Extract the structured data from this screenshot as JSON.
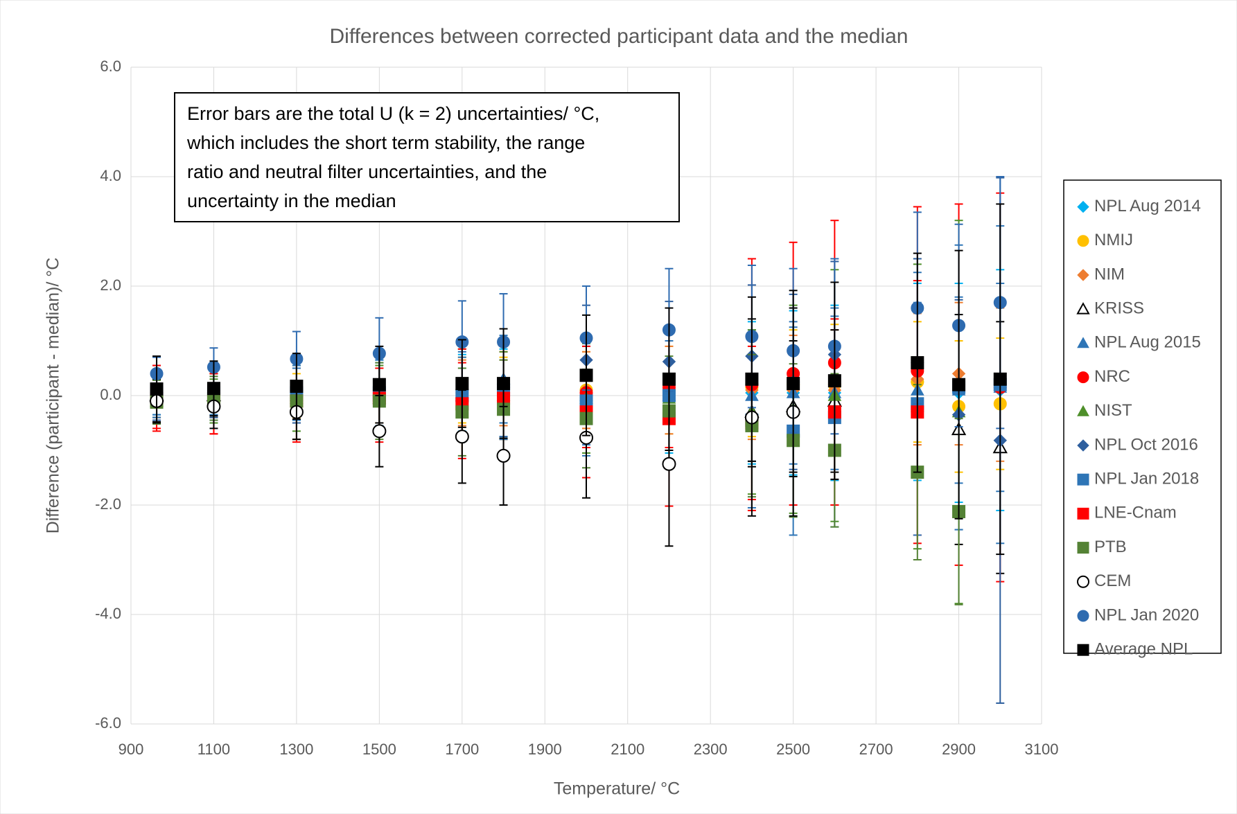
{
  "chart_data": {
    "type": "scatter",
    "title": "Differences between corrected participant data and the median",
    "x_label": "Temperature/ °C",
    "y_label": "Difference (participant - median)/ °C",
    "annotation": [
      "Error bars are the total U (k = 2) uncertainties/ °C,",
      "which includes the short term stability, the range",
      "ratio and neutral filter uncertainties, and the",
      "uncertainty in the median"
    ],
    "grid": true,
    "legend": "right",
    "xlim": [
      900,
      3100
    ],
    "xticks": [
      900,
      1100,
      1300,
      1500,
      1700,
      1900,
      2100,
      2300,
      2500,
      2700,
      2900,
      3100
    ],
    "ylim": [
      -6,
      6
    ],
    "yticks": [
      {
        "value": -6,
        "label": "-6.0"
      },
      {
        "value": -4,
        "label": "-4.0"
      },
      {
        "value": -2,
        "label": "-2.0"
      },
      {
        "value": 0,
        "label": "0.0"
      },
      {
        "value": 2,
        "label": "2.0"
      },
      {
        "value": 4,
        "label": "4.0"
      },
      {
        "value": 6,
        "label": "6.0"
      }
    ],
    "x": [
      962,
      1100,
      1300,
      1500,
      1700,
      1800,
      2000,
      2200,
      2400,
      2500,
      2600,
      2800,
      2900,
      3000
    ],
    "series": [
      {
        "name": "NPL Aug 2014",
        "color": "#00b0f0",
        "marker": "diamond",
        "filled": true,
        "values": [
          0.05,
          0.05,
          0.05,
          0.05,
          0.05,
          0.05,
          0.1,
          0.05,
          0.05,
          0.05,
          0.05,
          0.25,
          0.05,
          0.1
        ],
        "errors": [
          0.4,
          0.4,
          0.5,
          0.6,
          0.7,
          0.8,
          0.9,
          1.1,
          1.3,
          1.5,
          1.6,
          1.8,
          2.0,
          2.2
        ]
      },
      {
        "name": "NMIJ",
        "color": "#ffc000",
        "marker": "circle",
        "filled": true,
        "values": [
          0,
          0,
          0,
          0,
          0.1,
          0.1,
          0.1,
          0.1,
          0.15,
          0.2,
          0.2,
          0.25,
          -0.2,
          -0.15
        ],
        "errors": [
          0.4,
          0.4,
          0.4,
          0.5,
          0.6,
          0.6,
          0.7,
          0.8,
          0.9,
          1.0,
          1.1,
          1.1,
          1.2,
          1.2
        ]
      },
      {
        "name": "NIM",
        "color": "#ed7d31",
        "marker": "diamond",
        "filled": true,
        "values": [
          0,
          0,
          0,
          0,
          0.05,
          0.05,
          0.1,
          0.1,
          0.1,
          0.1,
          0.1,
          0.3,
          0.4,
          0.2
        ],
        "errors": [
          0.4,
          0.4,
          0.5,
          0.5,
          0.6,
          0.6,
          0.7,
          0.8,
          0.9,
          1.0,
          1.1,
          1.2,
          1.3,
          1.4
        ]
      },
      {
        "name": "KRISS",
        "color": "#000000",
        "marker": "triangle",
        "filled": false,
        "values": [
          0,
          0,
          null,
          null,
          null,
          null,
          null,
          null,
          -0.3,
          -0.2,
          -0.1,
          null,
          -0.62,
          -0.95
        ],
        "errors": [
          0.4,
          0.4,
          null,
          null,
          null,
          null,
          null,
          null,
          1.0,
          1.2,
          1.3,
          null,
          2.1,
          2.3
        ]
      },
      {
        "name": "NPL Aug 2015",
        "color": "#2e75b6",
        "marker": "triangle",
        "filled": true,
        "values": [
          0,
          0,
          0,
          0,
          0,
          0.3,
          0,
          0,
          0,
          0.05,
          0.05,
          0.1,
          0.1,
          0.15
        ],
        "errors": [
          0.4,
          0.45,
          0.5,
          0.6,
          0.7,
          0.8,
          0.9,
          1.0,
          1.2,
          1.3,
          1.4,
          1.6,
          1.7,
          1.9
        ]
      },
      {
        "name": "NRC",
        "color": "#ff0000",
        "marker": "circle",
        "filled": true,
        "values": [
          -0.1,
          -0.15,
          -0.1,
          -0.1,
          -0.1,
          0,
          0.05,
          0.15,
          0.2,
          0.4,
          0.6,
          0.45,
          0.2,
          0.15
        ],
        "errors": [
          0.5,
          0.55,
          0.7,
          0.6,
          0.7,
          0.8,
          1.0,
          1.1,
          2.3,
          2.4,
          2.6,
          3.0,
          3.3,
          3.55
        ]
      },
      {
        "name": "NIST",
        "color": "#4e8f2a",
        "marker": "triangle",
        "filled": true,
        "values": [
          -0.1,
          -0.1,
          -0.05,
          -0.05,
          0.05,
          0,
          -0.05,
          -0.05,
          -0.3,
          -0.25,
          0,
          -0.2,
          -0.3,
          null
        ],
        "errors": [
          0.4,
          0.4,
          0.6,
          0.6,
          0.8,
          0.8,
          1.0,
          1.2,
          1.5,
          1.9,
          2.3,
          2.6,
          3.5,
          null
        ]
      },
      {
        "name": "NPL Oct 2016",
        "color": "#2e5f9e",
        "marker": "diamond",
        "filled": true,
        "values": [
          0.05,
          0.1,
          0.1,
          0.1,
          0.1,
          0.15,
          0.65,
          0.62,
          0.72,
          0.25,
          0.75,
          0.6,
          -0.35,
          -0.82
        ],
        "errors": [
          0.5,
          0.5,
          0.6,
          0.7,
          0.8,
          0.9,
          1.0,
          1.1,
          1.3,
          1.6,
          1.7,
          1.9,
          2.1,
          4.8
        ]
      },
      {
        "name": "NPL Jan 2018",
        "color": "#2e75b6",
        "marker": "square",
        "filled": true,
        "values": [
          0.05,
          0.05,
          0.05,
          0.05,
          0,
          0.1,
          -0.1,
          0,
          -0.45,
          -0.65,
          -0.4,
          -0.15,
          0.15,
          0.2
        ],
        "errors": [
          0.4,
          0.4,
          0.5,
          0.6,
          0.8,
          0.9,
          1.0,
          1.2,
          1.6,
          1.9,
          2.0,
          2.4,
          2.6,
          2.9
        ]
      },
      {
        "name": "LNE-Cnam",
        "color": "#ff0000",
        "marker": "square",
        "filled": true,
        "values": [
          -0.05,
          -0.1,
          -0.1,
          -0.05,
          -0.15,
          -0.05,
          -0.3,
          -0.42,
          -0.5,
          null,
          -0.3,
          -0.3,
          null,
          null
        ],
        "errors": [
          0.6,
          0.6,
          0.75,
          0.8,
          1.0,
          1.1,
          1.2,
          1.6,
          1.4,
          null,
          1.7,
          2.4,
          null,
          null
        ]
      },
      {
        "name": "PTB",
        "color": "#548235",
        "marker": "square",
        "filled": true,
        "values": [
          -0.12,
          -0.05,
          -0.1,
          -0.1,
          -0.3,
          -0.25,
          -0.42,
          -0.28,
          -0.55,
          -0.82,
          -1.0,
          -1.4,
          -2.12,
          null
        ],
        "errors": [
          0.4,
          0.4,
          0.7,
          0.7,
          0.8,
          0.9,
          0.9,
          1.0,
          1.3,
          1.4,
          1.4,
          1.6,
          1.7,
          null
        ]
      },
      {
        "name": "CEM",
        "color": "#000000",
        "marker": "circle",
        "filled": false,
        "values": [
          -0.1,
          -0.2,
          -0.3,
          -0.65,
          -0.75,
          -1.1,
          -0.77,
          -1.25,
          -0.4,
          -0.3,
          null,
          null,
          null,
          null
        ],
        "errors": [
          0.4,
          0.4,
          0.5,
          0.65,
          0.85,
          0.9,
          1.1,
          1.5,
          1.8,
          1.9,
          null,
          null,
          null,
          null
        ]
      },
      {
        "name": "NPL Jan 2020",
        "color": "#2e6bb0",
        "marker": "circle",
        "filled": true,
        "values": [
          0.4,
          0.52,
          0.67,
          0.77,
          0.98,
          0.98,
          1.05,
          1.2,
          1.08,
          0.82,
          0.9,
          1.6,
          1.28,
          1.7
        ],
        "errors": [
          0.3,
          0.35,
          0.5,
          0.65,
          0.75,
          0.88,
          0.95,
          1.12,
          1.3,
          1.5,
          1.6,
          1.75,
          1.85,
          2.3
        ]
      },
      {
        "name": "Average NPL",
        "color": "#000000",
        "marker": "square",
        "filled": true,
        "values": [
          0.12,
          0.13,
          0.17,
          0.2,
          0.22,
          0.22,
          0.37,
          0.3,
          0.3,
          0.22,
          0.27,
          0.6,
          0.2,
          0.3
        ],
        "errors": [
          0.6,
          0.5,
          0.6,
          0.7,
          0.8,
          1.0,
          1.1,
          1.3,
          1.5,
          1.7,
          1.8,
          2.0,
          2.45,
          3.2
        ]
      }
    ]
  }
}
